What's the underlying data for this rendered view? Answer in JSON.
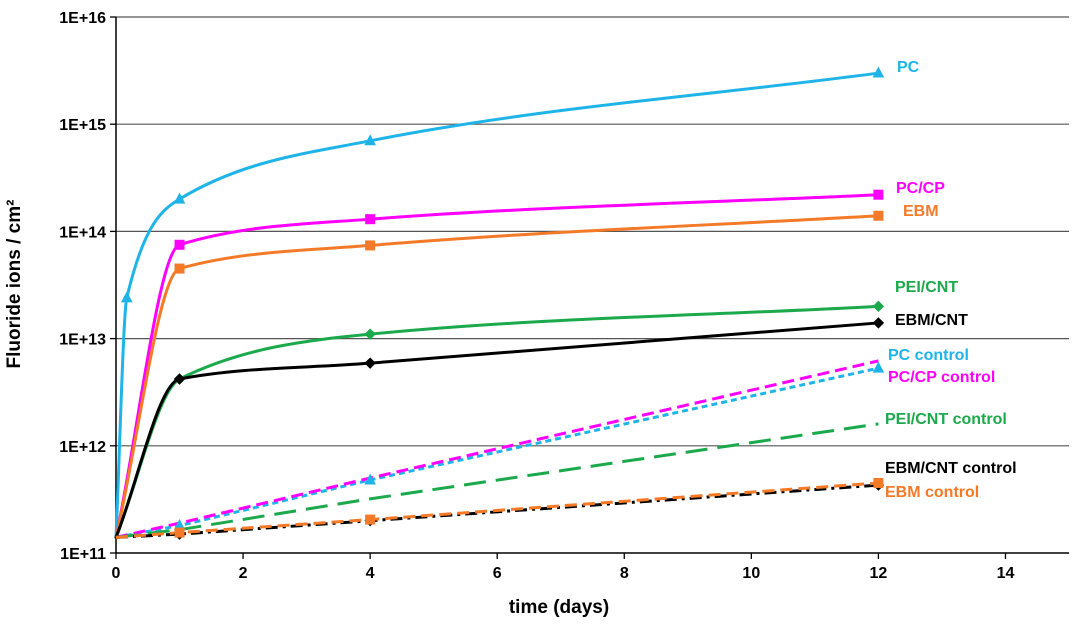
{
  "chart_data": {
    "type": "line",
    "title": "",
    "xlabel": "time (days)",
    "ylabel": "Fluoride ions / cm²",
    "x_scale": "linear",
    "y_scale": "log",
    "xlim": [
      0,
      15
    ],
    "ylim": [
      100000000000.0,
      1e+16
    ],
    "x_ticks": [
      0,
      2,
      4,
      6,
      8,
      10,
      12,
      14
    ],
    "y_ticks": [
      {
        "value": 100000000000.0,
        "label": "1E+11"
      },
      {
        "value": 1000000000000.0,
        "label": "1E+12"
      },
      {
        "value": 10000000000000.0,
        "label": "1E+13"
      },
      {
        "value": 100000000000000.0,
        "label": "1E+14"
      },
      {
        "value": 1000000000000000.0,
        "label": "1E+15"
      },
      {
        "value": 1e+16,
        "label": "1E+16"
      }
    ],
    "grid": "horizontal",
    "series": [
      {
        "name": "PC",
        "label": "PC",
        "color": "#1FB4E8",
        "dash": "solid",
        "width": 3,
        "marker": "triangle",
        "points": [
          [
            0,
            140000000000.0
          ],
          [
            0.17,
            24000000000000.0
          ],
          [
            1,
            200000000000000.0
          ],
          [
            4,
            700000000000000.0
          ],
          [
            12,
            3000000000000000.0
          ]
        ]
      },
      {
        "name": "PC/CP",
        "label": "PC/CP",
        "color": "#FF00FF",
        "dash": "solid",
        "width": 3,
        "marker": "square",
        "points": [
          [
            0,
            140000000000.0
          ],
          [
            1,
            75000000000000.0
          ],
          [
            4,
            130000000000000.0
          ],
          [
            12,
            220000000000000.0
          ]
        ]
      },
      {
        "name": "EBM",
        "label": "EBM",
        "color": "#F47A28",
        "dash": "solid",
        "width": 3,
        "marker": "square",
        "points": [
          [
            0,
            140000000000.0
          ],
          [
            1,
            45000000000000.0
          ],
          [
            4,
            74000000000000.0
          ],
          [
            12,
            140000000000000.0
          ]
        ]
      },
      {
        "name": "PEI/CNT",
        "label": "PEI/CNT",
        "color": "#1BA94C",
        "dash": "solid",
        "width": 3,
        "marker": "diamond",
        "points": [
          [
            0,
            140000000000.0
          ],
          [
            1,
            4200000000000.0
          ],
          [
            4,
            11000000000000.0
          ],
          [
            12,
            20000000000000.0
          ]
        ]
      },
      {
        "name": "EBM/CNT",
        "label": "EBM/CNT",
        "color": "#000000",
        "dash": "solid",
        "width": 3,
        "marker": "diamond",
        "points": [
          [
            0,
            140000000000.0
          ],
          [
            1,
            4200000000000.0
          ],
          [
            4,
            5900000000000.0
          ],
          [
            12,
            14000000000000.0
          ]
        ]
      },
      {
        "name": "PC control",
        "label": "PC control",
        "color": "#1FB4E8",
        "dash": "short",
        "width": 3,
        "marker": "triangle",
        "points": [
          [
            0,
            140000000000.0
          ],
          [
            1,
            180000000000.0
          ],
          [
            4,
            480000000000.0
          ],
          [
            12,
            5300000000000.0
          ]
        ]
      },
      {
        "name": "PC/CP control",
        "label": "PC/CP control",
        "color": "#FF00FF",
        "dash": "medium",
        "width": 3,
        "marker": "none",
        "points": [
          [
            0,
            140000000000.0
          ],
          [
            1,
            190000000000.0
          ],
          [
            4,
            500000000000.0
          ],
          [
            12,
            6200000000000.0
          ]
        ]
      },
      {
        "name": "PEI/CNT control",
        "label": "PEI/CNT control",
        "color": "#1BA94C",
        "dash": "long",
        "width": 3,
        "marker": "none",
        "points": [
          [
            0,
            140000000000.0
          ],
          [
            1,
            165000000000.0
          ],
          [
            4,
            320000000000.0
          ],
          [
            12,
            1600000000000.0
          ]
        ]
      },
      {
        "name": "EBM/CNT control",
        "label": "EBM/CNT control",
        "color": "#000000",
        "dash": "dashdot",
        "width": 3,
        "marker": "diamond",
        "points": [
          [
            0,
            140000000000.0
          ],
          [
            1,
            150000000000.0
          ],
          [
            4,
            200000000000.0
          ],
          [
            12,
            430000000000.0
          ]
        ]
      },
      {
        "name": "EBM control",
        "label": "EBM control",
        "color": "#F47A28",
        "dash": "medium",
        "width": 3,
        "marker": "square",
        "points": [
          [
            0,
            140000000000.0
          ],
          [
            1,
            155000000000.0
          ],
          [
            4,
            205000000000.0
          ],
          [
            12,
            450000000000.0
          ]
        ]
      }
    ]
  }
}
